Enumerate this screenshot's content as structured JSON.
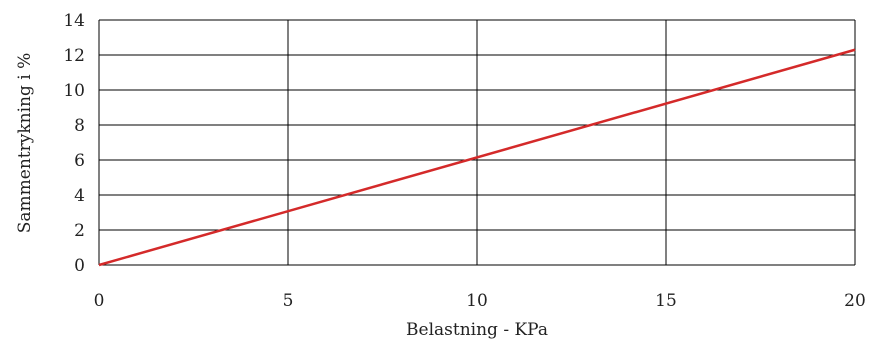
{
  "chart_data": {
    "type": "line",
    "title": "",
    "xlabel": "Belastning - KPa",
    "ylabel": "Sammentrykning i %",
    "xlim": [
      0,
      20
    ],
    "ylim": [
      0,
      14
    ],
    "xticks": [
      0,
      5,
      10,
      15,
      20
    ],
    "yticks": [
      0,
      2,
      4,
      6,
      8,
      10,
      12,
      14
    ],
    "grid": true,
    "series": [
      {
        "color": "#d42a2a",
        "x": [
          0,
          20
        ],
        "y": [
          0,
          12.3
        ]
      }
    ]
  }
}
